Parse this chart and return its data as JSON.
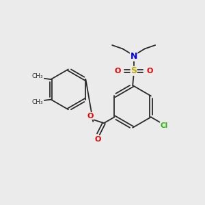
{
  "background_color": "#ebebeb",
  "bond_color": "#2a2a2a",
  "atom_colors": {
    "N": "#0000ee",
    "O": "#ee0000",
    "S": "#bbaa00",
    "Cl": "#22bb00",
    "C": "#2a2a2a"
  },
  "figsize": [
    3.0,
    3.0
  ],
  "dpi": 100
}
